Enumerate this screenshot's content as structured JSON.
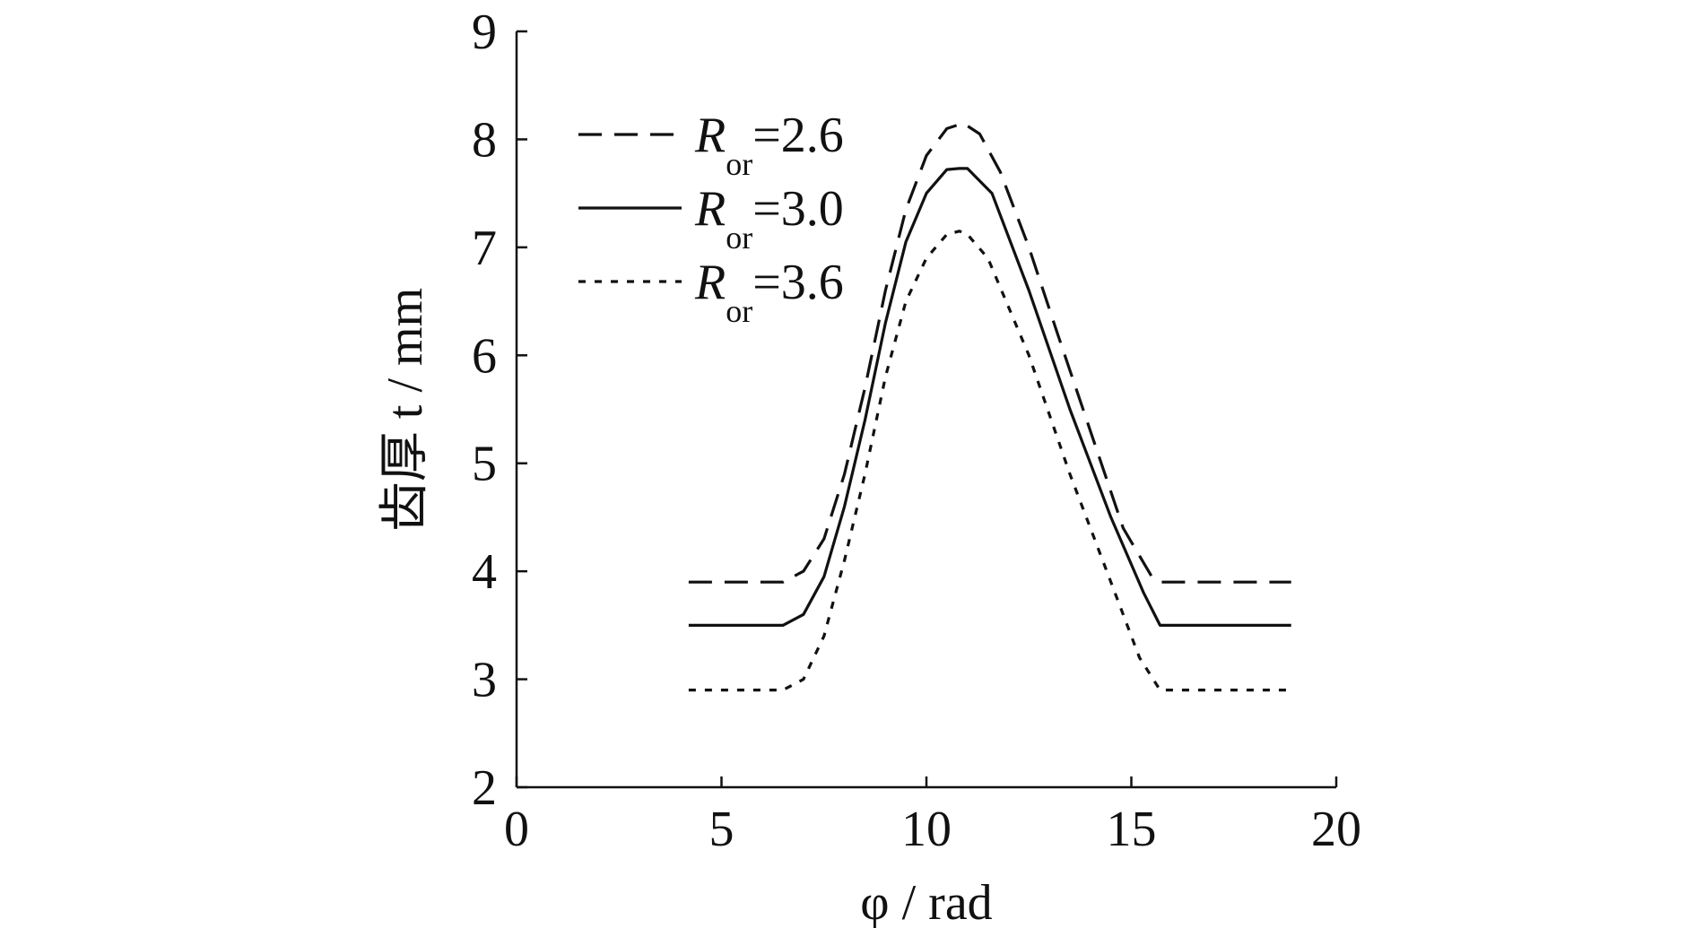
{
  "chart_data": {
    "type": "line",
    "xlabel": "φ / rad",
    "ylabel": "齿厚 t / mm",
    "xlim": [
      0,
      20
    ],
    "ylim": [
      2,
      9
    ],
    "xticks": [
      0,
      5,
      10,
      15,
      20
    ],
    "yticks": [
      2,
      3,
      4,
      5,
      6,
      7,
      8,
      9
    ],
    "grid": false,
    "legend_position": "top-left",
    "series": [
      {
        "name": "R_or=2.6",
        "legend_main": "R",
        "legend_sub": "or",
        "legend_value": "=2.6",
        "style": "dashed",
        "x": [
          4.2,
          6.5,
          7.0,
          7.5,
          8.0,
          8.5,
          9.0,
          9.5,
          10.0,
          10.5,
          10.9,
          11.3,
          11.8,
          12.5,
          13.2,
          14.0,
          14.8,
          15.5,
          15.7,
          18.9
        ],
        "y": [
          3.9,
          3.9,
          4.0,
          4.3,
          4.9,
          5.7,
          6.6,
          7.35,
          7.85,
          8.1,
          8.15,
          8.05,
          7.7,
          7.0,
          6.2,
          5.3,
          4.4,
          3.95,
          3.9,
          3.9
        ]
      },
      {
        "name": "R_or=3.0",
        "legend_main": "R",
        "legend_sub": "or",
        "legend_value": "=3.0",
        "style": "solid",
        "x": [
          4.2,
          6.5,
          7.0,
          7.5,
          8.0,
          8.5,
          9.0,
          9.5,
          10.0,
          10.5,
          10.8,
          11.0,
          11.6,
          12.5,
          13.5,
          14.5,
          15.3,
          15.7,
          18.9
        ],
        "y": [
          3.5,
          3.5,
          3.6,
          3.95,
          4.6,
          5.4,
          6.3,
          7.05,
          7.5,
          7.72,
          7.73,
          7.73,
          7.5,
          6.6,
          5.5,
          4.5,
          3.8,
          3.5,
          3.5
        ]
      },
      {
        "name": "R_or=3.6",
        "legend_main": "R",
        "legend_sub": "or",
        "legend_value": "=3.6",
        "style": "dotted",
        "x": [
          4.2,
          6.5,
          7.0,
          7.5,
          8.0,
          8.5,
          9.0,
          9.5,
          10.0,
          10.5,
          10.8,
          11.0,
          11.5,
          12.5,
          13.5,
          14.5,
          15.2,
          15.7,
          18.9
        ],
        "y": [
          2.9,
          2.9,
          3.0,
          3.4,
          4.1,
          4.9,
          5.8,
          6.5,
          6.9,
          7.12,
          7.15,
          7.12,
          6.9,
          6.0,
          4.9,
          3.9,
          3.2,
          2.9,
          2.9
        ]
      }
    ]
  }
}
